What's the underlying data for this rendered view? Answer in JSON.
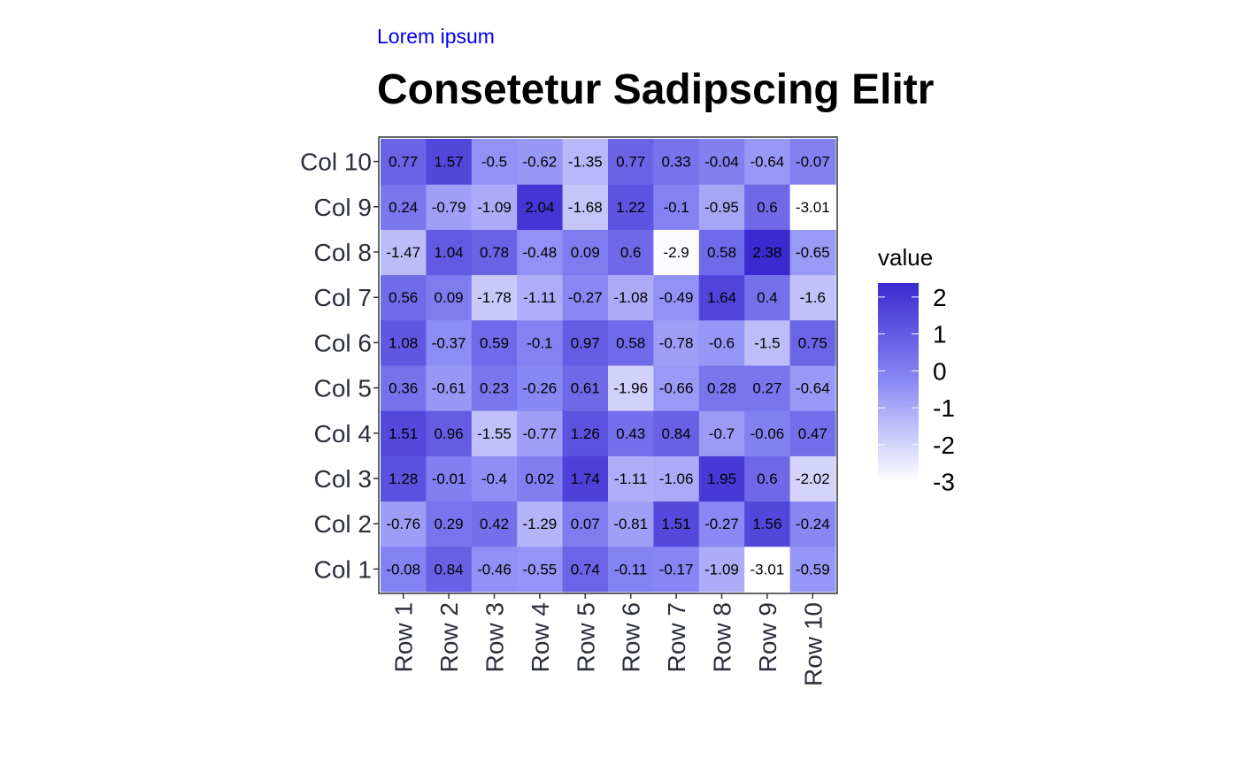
{
  "subtitle": "Lorem ipsum",
  "title": "Consetetur Sadipscing Elitr",
  "chart_data": {
    "type": "heatmap",
    "x_categories": [
      "Row 1",
      "Row 2",
      "Row 3",
      "Row 4",
      "Row 5",
      "Row 6",
      "Row 7",
      "Row 8",
      "Row 9",
      "Row 10"
    ],
    "y_categories": [
      "Col 1",
      "Col 2",
      "Col 3",
      "Col 4",
      "Col 5",
      "Col 6",
      "Col 7",
      "Col 8",
      "Col 9",
      "Col 10"
    ],
    "values": [
      [
        -0.08,
        0.84,
        -0.46,
        -0.55,
        0.74,
        -0.11,
        -0.17,
        -1.09,
        -3.01,
        -0.59
      ],
      [
        -0.76,
        0.29,
        0.42,
        -1.29,
        0.07,
        -0.81,
        1.51,
        -0.27,
        1.56,
        -0.24
      ],
      [
        1.28,
        -0.01,
        -0.4,
        0.02,
        1.74,
        -1.11,
        -1.06,
        1.95,
        0.6,
        -2.02
      ],
      [
        1.51,
        0.96,
        -1.55,
        -0.77,
        1.26,
        0.43,
        0.84,
        -0.7,
        -0.06,
        0.47
      ],
      [
        0.36,
        -0.61,
        0.23,
        -0.26,
        0.61,
        -1.96,
        -0.66,
        0.28,
        0.27,
        -0.64
      ],
      [
        1.08,
        -0.37,
        0.59,
        -0.1,
        0.97,
        0.58,
        -0.78,
        -0.6,
        -1.5,
        0.75
      ],
      [
        0.56,
        0.09,
        -1.78,
        -1.11,
        -0.27,
        -1.08,
        -0.49,
        1.64,
        0.4,
        -1.6
      ],
      [
        -1.47,
        1.04,
        0.78,
        -0.48,
        0.09,
        0.6,
        -2.9,
        0.58,
        2.38,
        -0.65
      ],
      [
        0.24,
        -0.79,
        -1.09,
        2.04,
        -1.68,
        1.22,
        -0.1,
        -0.95,
        0.6,
        -3.01
      ],
      [
        0.77,
        1.57,
        -0.5,
        -0.62,
        -1.35,
        0.77,
        0.33,
        -0.04,
        -0.64,
        -0.07
      ]
    ],
    "legend": {
      "title": "value",
      "ticks": [
        2,
        1,
        0,
        -1,
        -2,
        -3
      ],
      "tick_labels": [
        "2",
        "1",
        "0",
        "-1",
        "-2",
        "-3"
      ],
      "min": -3.01,
      "max": 2.38,
      "low_color": "#ffffff",
      "mid_color": "#8a8af5",
      "high_color": "#3a2ad0",
      "placement": "right"
    },
    "grid": false
  }
}
